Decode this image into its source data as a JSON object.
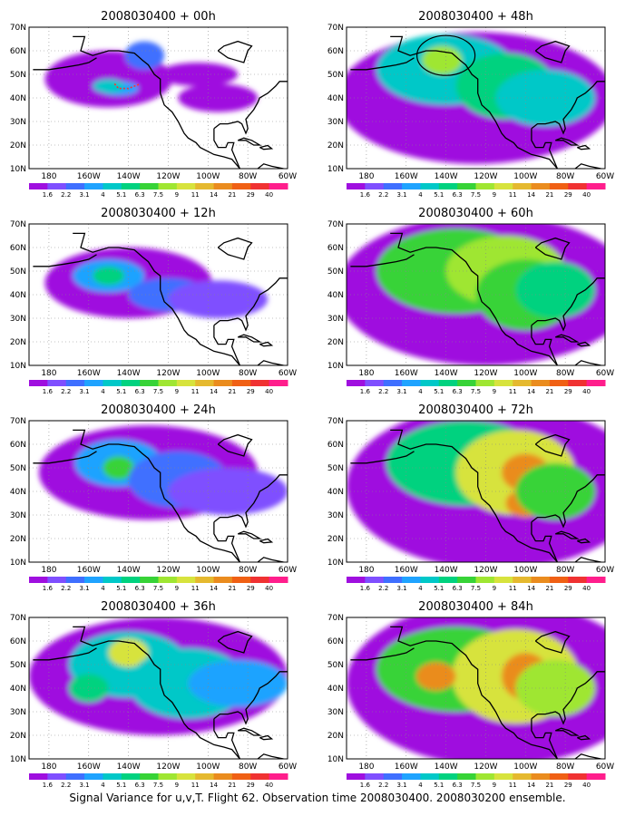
{
  "caption": "Signal Variance for u,v,T. Flight 62. Observation time 2008030400. 2008030200 ensemble.",
  "lat_labels": [
    "70N",
    "60N",
    "50N",
    "40N",
    "30N",
    "20N",
    "10N"
  ],
  "lon_labels": [
    "180",
    "160W",
    "140W",
    "120W",
    "100W",
    "80W",
    "60W"
  ],
  "colorbar": {
    "labels": [
      "1.6",
      "2.2",
      "3.1",
      "4",
      "5.1",
      "6.3",
      "7.5",
      "9",
      "11",
      "14",
      "21",
      "29",
      "40"
    ],
    "colors": [
      "#9f0fdf",
      "#7f4fff",
      "#3f6fff",
      "#1fa3ff",
      "#00c8c8",
      "#00d27f",
      "#37d337",
      "#9fe632",
      "#d7e33d",
      "#e5b92f",
      "#ea8c1e",
      "#f06014",
      "#f03232",
      "#ff1e8c"
    ]
  },
  "panels": [
    {
      "title": "2008030400 + 00h",
      "col": 0,
      "row": 0,
      "blobs": [
        [
          -150,
          48,
          32,
          12,
          0
        ],
        [
          -132,
          58,
          10,
          6,
          2
        ],
        [
          -145,
          44,
          10,
          3,
          3
        ],
        [
          -105,
          50,
          20,
          5,
          0
        ],
        [
          -95,
          40,
          20,
          6,
          0
        ],
        [
          -150,
          45,
          8,
          3,
          4
        ]
      ]
    },
    {
      "title": "2008030400 + 12h",
      "col": 0,
      "row": 1,
      "blobs": [
        [
          -140,
          45,
          42,
          15,
          0
        ],
        [
          -150,
          48,
          18,
          7,
          3
        ],
        [
          -150,
          48,
          8,
          4,
          5
        ],
        [
          -120,
          40,
          20,
          7,
          2
        ],
        [
          -95,
          38,
          25,
          8,
          1
        ]
      ]
    },
    {
      "title": "2008030400 + 24h",
      "col": 0,
      "row": 2,
      "blobs": [
        [
          -130,
          48,
          55,
          20,
          0
        ],
        [
          -145,
          52,
          22,
          10,
          3
        ],
        [
          -145,
          50,
          8,
          5,
          6
        ],
        [
          -115,
          45,
          25,
          12,
          2
        ],
        [
          -90,
          40,
          30,
          10,
          1
        ]
      ]
    },
    {
      "title": "2008030400 + 36h",
      "col": 0,
      "row": 3,
      "blobs": [
        [
          -125,
          45,
          65,
          25,
          0
        ],
        [
          -140,
          50,
          30,
          14,
          4
        ],
        [
          -140,
          55,
          10,
          6,
          8
        ],
        [
          -110,
          42,
          30,
          15,
          4
        ],
        [
          -85,
          42,
          25,
          10,
          3
        ],
        [
          -160,
          40,
          10,
          6,
          5
        ]
      ]
    },
    {
      "title": "2008030400 + 48h",
      "col": 1,
      "row": 0,
      "blobs": [
        [
          -125,
          40,
          70,
          28,
          0
        ],
        [
          -140,
          52,
          35,
          15,
          4
        ],
        [
          -142,
          56,
          10,
          6,
          7
        ],
        [
          -110,
          45,
          25,
          14,
          5
        ],
        [
          -90,
          40,
          25,
          12,
          4
        ]
      ]
    },
    {
      "title": "2008030400 + 60h",
      "col": 1,
      "row": 1,
      "blobs": [
        [
          -120,
          42,
          75,
          32,
          0
        ],
        [
          -135,
          50,
          40,
          18,
          6
        ],
        [
          -110,
          50,
          30,
          15,
          7
        ],
        [
          -100,
          40,
          25,
          15,
          6
        ],
        [
          -85,
          42,
          20,
          12,
          5
        ]
      ]
    },
    {
      "title": "2008030400 + 72h",
      "col": 1,
      "row": 2,
      "blobs": [
        [
          -115,
          42,
          75,
          35,
          0
        ],
        [
          -130,
          52,
          40,
          18,
          5
        ],
        [
          -105,
          48,
          30,
          18,
          8
        ],
        [
          -100,
          48,
          12,
          8,
          10
        ],
        [
          -100,
          35,
          10,
          6,
          10
        ],
        [
          -85,
          40,
          20,
          12,
          6
        ]
      ]
    },
    {
      "title": "2008030400 + 84h",
      "col": 1,
      "row": 3,
      "blobs": [
        [
          -115,
          42,
          75,
          35,
          0
        ],
        [
          -135,
          48,
          40,
          18,
          6
        ],
        [
          -105,
          45,
          32,
          20,
          8
        ],
        [
          -100,
          45,
          12,
          10,
          10
        ],
        [
          -145,
          45,
          10,
          6,
          10
        ],
        [
          -85,
          40,
          20,
          12,
          7
        ]
      ]
    }
  ]
}
